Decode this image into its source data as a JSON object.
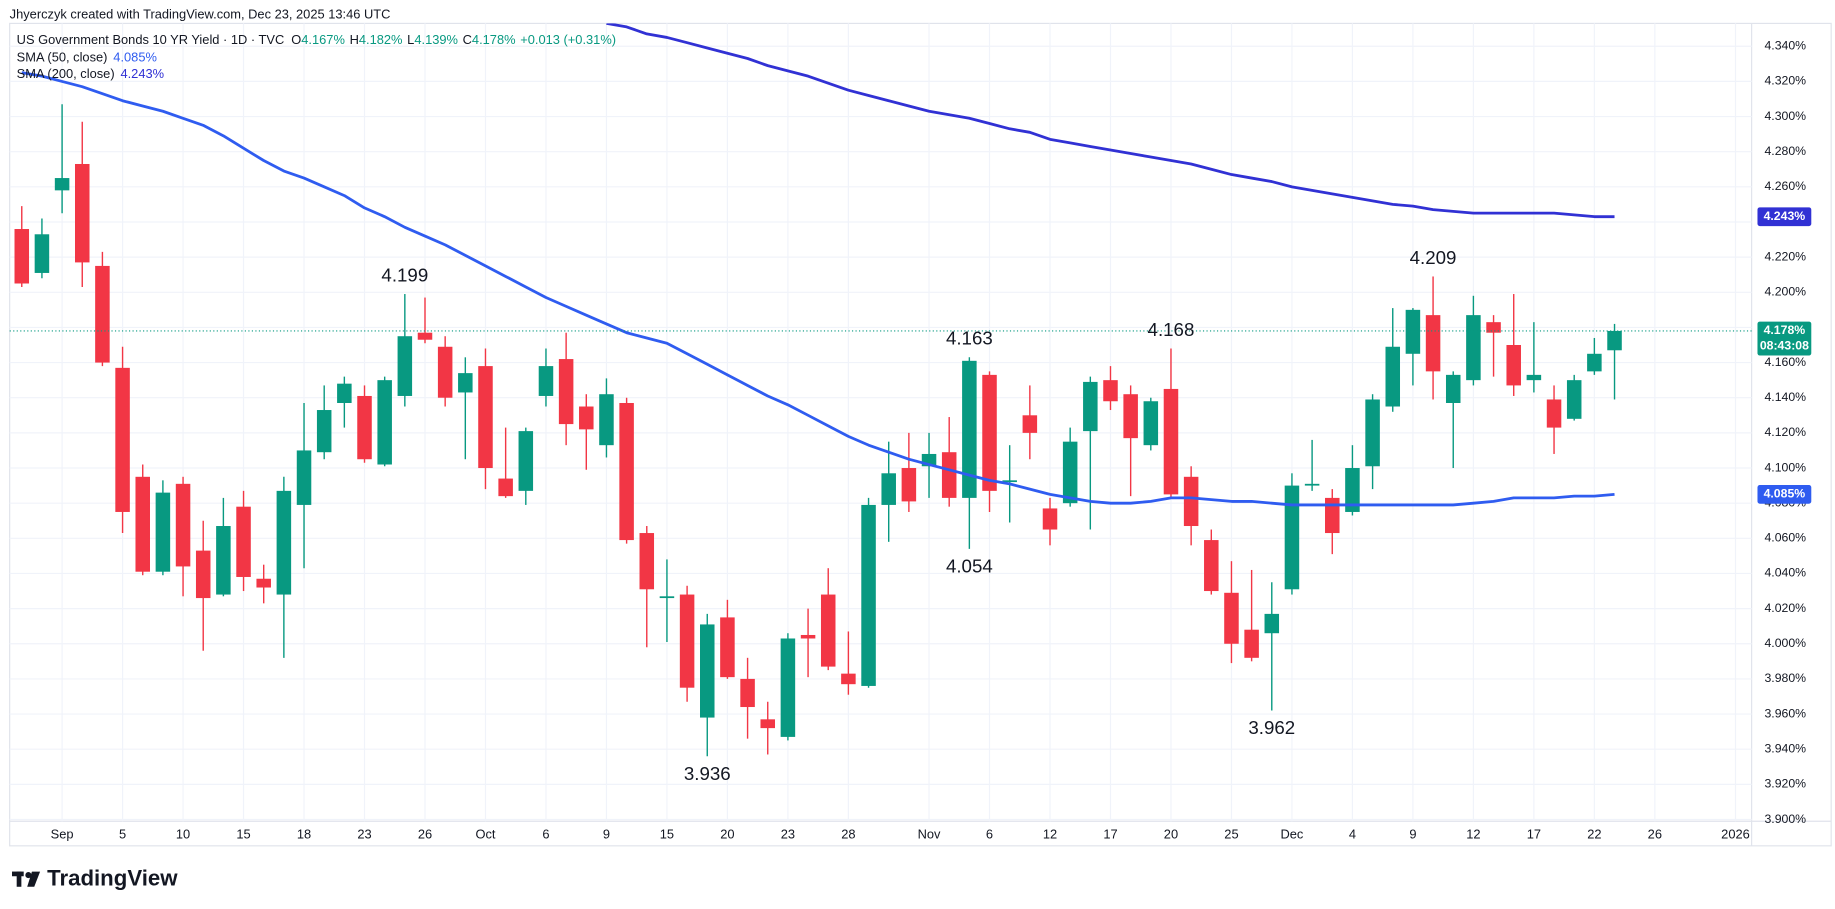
{
  "attribution": "Jhyerczyk created with TradingView.com, Dec 23, 2025 13:46 UTC",
  "brand": "TradingView",
  "chart_data": {
    "type": "candlestick",
    "title": "US Government Bonds 10 YR Yield · 1D · TVC",
    "ohlc_legend": [
      {
        "key": "O",
        "value": "4.167%"
      },
      {
        "key": "H",
        "value": "4.182%"
      },
      {
        "key": "L",
        "value": "4.139%"
      },
      {
        "key": "C",
        "value": "4.178%"
      }
    ],
    "change": "+0.013 (+0.31%)",
    "countdown": "08:43:08",
    "up_color": "#089981",
    "down_color": "#f23645",
    "candles": {
      "open": [
        4.236,
        4.211,
        4.258,
        4.273,
        4.215,
        4.157,
        4.095,
        4.041,
        4.091,
        4.053,
        4.028,
        4.078,
        4.037,
        4.028,
        4.079,
        4.109,
        4.137,
        4.141,
        4.102,
        4.141,
        4.177,
        4.169,
        4.143,
        4.158,
        4.094,
        4.087,
        4.141,
        4.162,
        4.135,
        4.113,
        4.137,
        4.063,
        4.026,
        4.028,
        3.958,
        4.015,
        3.98,
        3.957,
        3.947,
        4.005,
        4.028,
        3.983,
        3.976,
        4.079,
        4.1,
        4.101,
        4.109,
        4.083,
        4.153,
        4.092,
        4.13,
        4.077,
        4.08,
        4.121,
        4.15,
        4.142,
        4.113,
        4.145,
        4.095,
        4.059,
        4.029,
        4.008,
        4.006,
        4.031,
        4.09,
        4.083,
        4.075,
        4.101,
        4.135,
        4.165,
        4.187,
        4.137,
        4.15,
        4.183,
        4.17,
        4.15,
        4.139,
        4.128,
        4.155,
        4.167
      ],
      "high": [
        4.249,
        4.242,
        4.307,
        4.297,
        4.223,
        4.169,
        4.102,
        4.093,
        4.095,
        4.07,
        4.083,
        4.087,
        4.045,
        4.095,
        4.137,
        4.147,
        4.152,
        4.147,
        4.152,
        4.199,
        4.197,
        4.175,
        4.163,
        4.168,
        4.123,
        4.123,
        4.168,
        4.177,
        4.142,
        4.151,
        4.14,
        4.067,
        4.048,
        4.033,
        4.017,
        4.025,
        3.992,
        3.967,
        4.006,
        4.02,
        4.043,
        4.007,
        4.083,
        4.115,
        4.12,
        4.12,
        4.129,
        4.163,
        4.155,
        4.113,
        4.147,
        4.083,
        4.123,
        4.152,
        4.158,
        4.147,
        4.14,
        4.168,
        4.101,
        4.065,
        4.047,
        4.042,
        4.035,
        4.097,
        4.116,
        4.088,
        4.113,
        4.142,
        4.191,
        4.191,
        4.209,
        4.155,
        4.198,
        4.187,
        4.199,
        4.183,
        4.147,
        4.153,
        4.174,
        4.182
      ],
      "low": [
        4.203,
        4.208,
        4.245,
        4.203,
        4.158,
        4.063,
        4.039,
        4.039,
        4.027,
        3.996,
        4.027,
        4.03,
        4.023,
        3.992,
        4.043,
        4.105,
        4.123,
        4.103,
        4.101,
        4.135,
        4.171,
        4.135,
        4.105,
        4.088,
        4.083,
        4.079,
        4.135,
        4.113,
        4.099,
        4.106,
        4.057,
        3.998,
        4.001,
        3.967,
        3.936,
        3.98,
        3.946,
        3.937,
        3.945,
        3.981,
        3.985,
        3.971,
        3.975,
        4.058,
        4.075,
        4.083,
        4.078,
        4.054,
        4.075,
        4.069,
        4.105,
        4.056,
        4.078,
        4.065,
        4.133,
        4.084,
        4.11,
        4.083,
        4.056,
        4.028,
        3.989,
        3.99,
        3.962,
        4.028,
        4.087,
        4.051,
        4.073,
        4.088,
        4.132,
        4.147,
        4.139,
        4.1,
        4.147,
        4.152,
        4.141,
        4.143,
        4.108,
        4.127,
        4.153,
        4.139
      ],
      "close": [
        4.205,
        4.233,
        4.265,
        4.217,
        4.16,
        4.075,
        4.041,
        4.086,
        4.044,
        4.026,
        4.067,
        4.038,
        4.032,
        4.087,
        4.11,
        4.133,
        4.148,
        4.105,
        4.15,
        4.175,
        4.173,
        4.14,
        4.154,
        4.1,
        4.084,
        4.121,
        4.158,
        4.125,
        4.122,
        4.142,
        4.059,
        4.031,
        4.027,
        3.975,
        4.011,
        3.981,
        3.964,
        3.952,
        4.003,
        4.003,
        3.987,
        3.977,
        4.079,
        4.097,
        4.081,
        4.108,
        4.083,
        4.161,
        4.087,
        4.093,
        4.12,
        4.065,
        4.115,
        4.149,
        4.138,
        4.117,
        4.138,
        4.085,
        4.067,
        4.03,
        4.0,
        3.992,
        4.017,
        4.09,
        4.091,
        4.063,
        4.1,
        4.139,
        4.169,
        4.19,
        4.155,
        4.153,
        4.187,
        4.177,
        4.147,
        4.153,
        4.123,
        4.15,
        4.165,
        4.178
      ]
    },
    "series": [
      {
        "name": "SMA (50, close)",
        "color": "#2f5cf0",
        "value_label": "4.085%",
        "values": [
          4.325,
          4.323,
          4.32,
          4.317,
          4.313,
          4.309,
          4.306,
          4.303,
          4.299,
          4.295,
          4.289,
          4.282,
          4.275,
          4.269,
          4.265,
          4.26,
          4.255,
          4.248,
          4.243,
          4.237,
          4.232,
          4.227,
          4.221,
          4.215,
          4.209,
          4.203,
          4.197,
          4.192,
          4.187,
          4.182,
          4.177,
          4.174,
          4.171,
          4.165,
          4.159,
          4.153,
          4.147,
          4.141,
          4.136,
          4.13,
          4.124,
          4.118,
          4.113,
          4.109,
          4.105,
          4.102,
          4.099,
          4.096,
          4.093,
          4.091,
          4.088,
          4.085,
          4.083,
          4.081,
          4.08,
          4.08,
          4.081,
          4.083,
          4.083,
          4.082,
          4.081,
          4.081,
          4.08,
          4.079,
          4.079,
          4.079,
          4.079,
          4.079,
          4.079,
          4.079,
          4.079,
          4.079,
          4.08,
          4.081,
          4.083,
          4.083,
          4.083,
          4.084,
          4.084,
          4.085
        ]
      },
      {
        "name": "SMA (200, close)",
        "color": "#3131d4",
        "value_label": "4.243%",
        "values": [
          null,
          null,
          null,
          null,
          null,
          null,
          null,
          null,
          null,
          null,
          null,
          null,
          null,
          null,
          null,
          null,
          null,
          null,
          null,
          null,
          null,
          null,
          null,
          null,
          null,
          null,
          null,
          null,
          null,
          4.353,
          4.351,
          4.347,
          4.345,
          4.342,
          4.339,
          4.336,
          4.333,
          4.329,
          4.326,
          4.323,
          4.319,
          4.315,
          4.312,
          4.309,
          4.306,
          4.303,
          4.301,
          4.299,
          4.296,
          4.293,
          4.291,
          4.287,
          4.285,
          4.283,
          4.281,
          4.279,
          4.277,
          4.275,
          4.273,
          4.27,
          4.267,
          4.265,
          4.263,
          4.26,
          4.258,
          4.256,
          4.254,
          4.252,
          4.25,
          4.249,
          4.247,
          4.246,
          4.245,
          4.245,
          4.245,
          4.245,
          4.245,
          4.244,
          4.243,
          4.243
        ]
      }
    ],
    "annotations": [
      {
        "label": "4.199",
        "x": 19,
        "y": 4.199
      },
      {
        "label": "3.936",
        "x": 34,
        "y": 3.936
      },
      {
        "label": "4.163",
        "x": 47,
        "y": 4.163
      },
      {
        "label": "4.054",
        "x": 47,
        "y": 4.054
      },
      {
        "label": "4.168",
        "x": 57,
        "y": 4.168
      },
      {
        "label": "3.962",
        "x": 62,
        "y": 3.962
      },
      {
        "label": "4.209",
        "x": 70,
        "y": 4.209
      }
    ],
    "xlim": [
      -0.6,
      85.8
    ],
    "xticks": [
      {
        "value": 2,
        "label": "Sep"
      },
      {
        "value": 5,
        "label": "5"
      },
      {
        "value": 8,
        "label": "10"
      },
      {
        "value": 11,
        "label": "15"
      },
      {
        "value": 14,
        "label": "18"
      },
      {
        "value": 17,
        "label": "23"
      },
      {
        "value": 20,
        "label": "26"
      },
      {
        "value": 23,
        "label": "Oct"
      },
      {
        "value": 26,
        "label": "6"
      },
      {
        "value": 29,
        "label": "9"
      },
      {
        "value": 32,
        "label": "15"
      },
      {
        "value": 35,
        "label": "20"
      },
      {
        "value": 38,
        "label": "23"
      },
      {
        "value": 41,
        "label": "28"
      },
      {
        "value": 45,
        "label": "Nov"
      },
      {
        "value": 48,
        "label": "6"
      },
      {
        "value": 51,
        "label": "12"
      },
      {
        "value": 54,
        "label": "17"
      },
      {
        "value": 57,
        "label": "20"
      },
      {
        "value": 60,
        "label": "25"
      },
      {
        "value": 63,
        "label": "Dec"
      },
      {
        "value": 66,
        "label": "4"
      },
      {
        "value": 69,
        "label": "9"
      },
      {
        "value": 72,
        "label": "12"
      },
      {
        "value": 75,
        "label": "17"
      },
      {
        "value": 78,
        "label": "22"
      },
      {
        "value": 81,
        "label": "26"
      },
      {
        "value": 85,
        "label": "2026"
      }
    ],
    "ylim": [
      3.899,
      4.353
    ],
    "yticks": [
      {
        "value": 4.34,
        "label": "4.340%"
      },
      {
        "value": 4.32,
        "label": "4.320%"
      },
      {
        "value": 4.3,
        "label": "4.300%"
      },
      {
        "value": 4.28,
        "label": "4.280%"
      },
      {
        "value": 4.26,
        "label": "4.260%"
      },
      {
        "value": 4.24,
        "label": "4.240%"
      },
      {
        "value": 4.22,
        "label": "4.220%"
      },
      {
        "value": 4.2,
        "label": "4.200%"
      },
      {
        "value": 4.18,
        "label": "4.180%"
      },
      {
        "value": 4.16,
        "label": "4.160%"
      },
      {
        "value": 4.14,
        "label": "4.140%"
      },
      {
        "value": 4.12,
        "label": "4.120%"
      },
      {
        "value": 4.1,
        "label": "4.100%"
      },
      {
        "value": 4.08,
        "label": "4.080%"
      },
      {
        "value": 4.06,
        "label": "4.060%"
      },
      {
        "value": 4.04,
        "label": "4.040%"
      },
      {
        "value": 4.02,
        "label": "4.020%"
      },
      {
        "value": 4.0,
        "label": "4.000%"
      },
      {
        "value": 3.98,
        "label": "3.980%"
      },
      {
        "value": 3.96,
        "label": "3.960%"
      },
      {
        "value": 3.94,
        "label": "3.940%"
      },
      {
        "value": 3.92,
        "label": "3.920%"
      },
      {
        "value": 3.9,
        "label": "3.900%"
      }
    ],
    "grid": true
  }
}
